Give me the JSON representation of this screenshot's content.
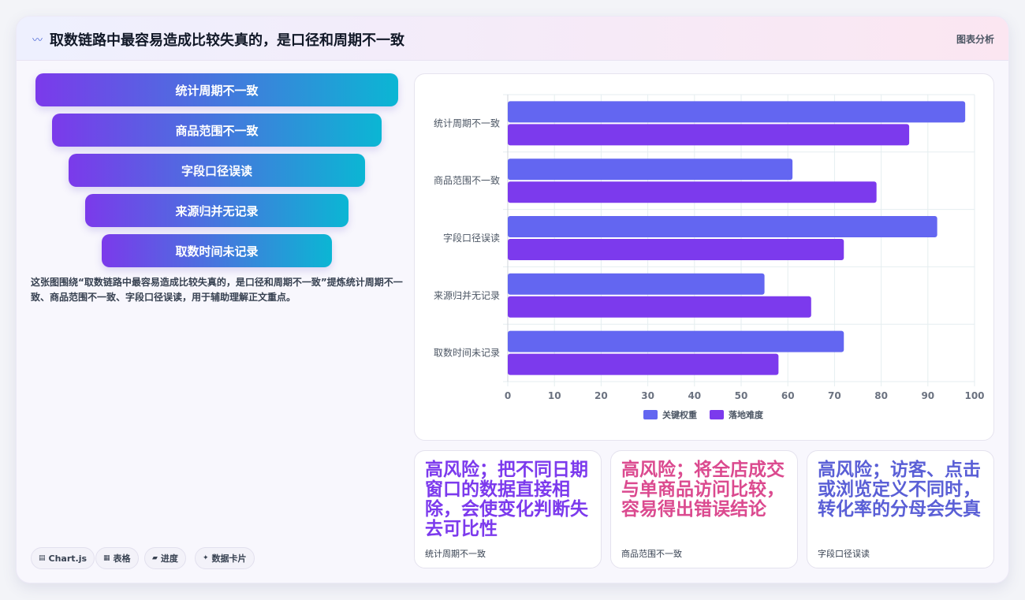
{
  "header": {
    "icon": "〰",
    "title": "取数链路中最容易造成比较失真的，是口径和周期不一致",
    "tag": "图表分析"
  },
  "funnel": [
    "统计周期不一致",
    "商品范围不一致",
    "字段口径误读",
    "来源归并无记录",
    "取数时间未记录"
  ],
  "description": "这张图围绕“取数链路中最容易造成比较失真的，是口径和周期不一致”提炼统计周期不一致、商品范围不一致、字段口径误读，用于辅助理解正文重点。",
  "chips": [
    {
      "icon": "▤",
      "label": "Chart.js"
    },
    {
      "icon": "▦",
      "label": "表格"
    },
    {
      "icon": "▰",
      "label": "进度"
    },
    {
      "icon": "✦",
      "label": "数据卡片"
    }
  ],
  "chart_data": {
    "type": "bar",
    "orientation": "horizontal",
    "categories": [
      "统计周期不一致",
      "商品范围不一致",
      "字段口径误读",
      "来源归并无记录",
      "取数时间未记录"
    ],
    "series": [
      {
        "name": "关键权重",
        "values": [
          98,
          61,
          92,
          55,
          72
        ],
        "color": "#6366f1"
      },
      {
        "name": "落地难度",
        "values": [
          86,
          79,
          72,
          65,
          58
        ],
        "color": "#7c3aed"
      }
    ],
    "xlim": [
      0,
      100
    ],
    "ticks": [
      "0",
      "10",
      "20",
      "30",
      "40",
      "50",
      "60",
      "70",
      "80",
      "90",
      "100"
    ],
    "grid": true,
    "legend": "bottom"
  },
  "cards": [
    {
      "value": "高风险；把不同日期窗口的数据直接相除，会使变化判断失去可比性",
      "label": "统计周期不一致",
      "color": "#7c3aed"
    },
    {
      "value": "高风险；将全店成交与单商品访问比较，容易得出错误结论",
      "label": "商品范围不一致",
      "color": "#db4a8f"
    },
    {
      "value": "高风险；访客、点击或浏览定义不同时，转化率的分母会失真",
      "label": "字段口径误读",
      "color": "#5a5fd6"
    }
  ]
}
